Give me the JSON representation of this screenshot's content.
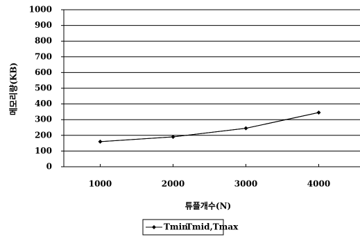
{
  "chart_data": {
    "type": "line",
    "x_label": "튜플개수(N)",
    "y_label": "메모리량(KB)",
    "x": [
      1000,
      2000,
      3000,
      4000
    ],
    "series": [
      {
        "name": "Tmin",
        "color": "#000000",
        "values": [
          160,
          190,
          245,
          345
        ]
      },
      {
        "name": "Tmid,Tmax",
        "color": "#000000",
        "values": [
          160,
          190,
          245,
          345
        ]
      }
    ],
    "xlim": [
      500,
      4500
    ],
    "xticks": [
      1000,
      2000,
      3000,
      4000
    ],
    "ylim": [
      0,
      1000
    ],
    "yticks": [
      0,
      100,
      200,
      300,
      400,
      500,
      600,
      700,
      800,
      900,
      1000
    ],
    "grid": true
  }
}
